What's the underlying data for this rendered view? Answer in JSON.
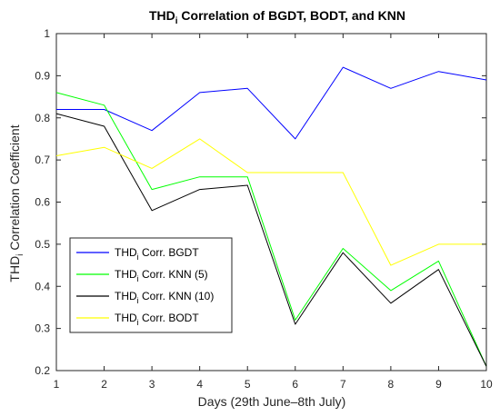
{
  "chart_data": {
    "type": "line",
    "title": {
      "main": "THD",
      "sub": "i",
      "rest": " Correlation of BGDT, BODT, and KNN"
    },
    "xlabel": "Days (29th June–8th July)",
    "ylabel": {
      "main": "THD",
      "sub": "i",
      "rest": " Correlation Coefficient"
    },
    "xlim": [
      1,
      10
    ],
    "ylim": [
      0.2,
      1
    ],
    "x": [
      1,
      2,
      3,
      4,
      5,
      6,
      7,
      8,
      9,
      10
    ],
    "x_ticks": [
      "1",
      "2",
      "3",
      "4",
      "5",
      "6",
      "7",
      "8",
      "9",
      "10"
    ],
    "y_ticks": [
      "0.2",
      "0.3",
      "0.4",
      "0.5",
      "0.6",
      "0.7",
      "0.8",
      "0.9",
      "1"
    ],
    "y_tick_values": [
      0.2,
      0.3,
      0.4,
      0.5,
      0.6,
      0.7,
      0.8,
      0.9,
      1.0
    ],
    "grid": false,
    "legend_position": "bottom-left",
    "series": [
      {
        "name": {
          "main": "THD",
          "sub": "i",
          "rest": " Corr. BGDT"
        },
        "color": "#0000ff",
        "values": [
          0.82,
          0.82,
          0.77,
          0.86,
          0.87,
          0.75,
          0.92,
          0.87,
          0.91,
          0.89
        ]
      },
      {
        "name": {
          "main": "THD",
          "sub": "i",
          "rest": " Corr. KNN (5)"
        },
        "color": "#00ff00",
        "values": [
          0.86,
          0.83,
          0.63,
          0.66,
          0.66,
          0.32,
          0.49,
          0.39,
          0.46,
          0.21
        ]
      },
      {
        "name": {
          "main": "THD",
          "sub": "i",
          "rest": " Corr. KNN (10)"
        },
        "color": "#000000",
        "values": [
          0.81,
          0.78,
          0.58,
          0.63,
          0.64,
          0.31,
          0.48,
          0.36,
          0.44,
          0.21
        ]
      },
      {
        "name": {
          "main": "THD",
          "sub": "i",
          "rest": " Corr. BODT"
        },
        "color": "#ffff00",
        "values": [
          0.71,
          0.73,
          0.68,
          0.75,
          0.67,
          0.67,
          0.67,
          0.45,
          0.5,
          0.5
        ]
      }
    ]
  }
}
